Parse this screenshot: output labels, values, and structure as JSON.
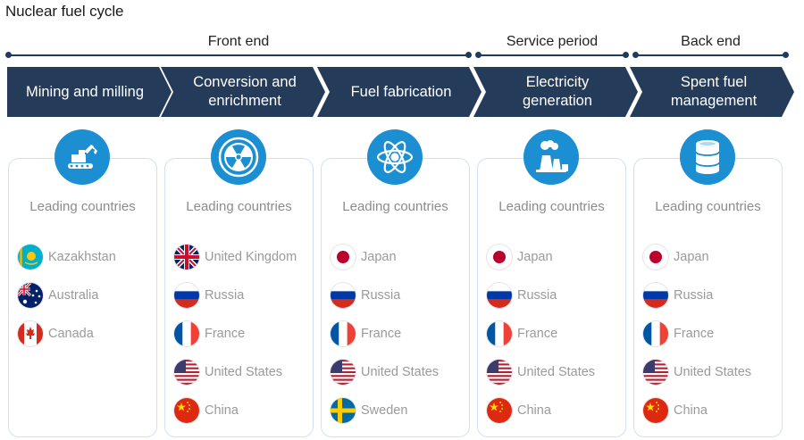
{
  "title": "Nuclear fuel cycle",
  "phases": [
    {
      "label": "Front end"
    },
    {
      "label": "Service period"
    },
    {
      "label": "Back end"
    }
  ],
  "steps": [
    {
      "label": "Mining and milling",
      "icon": "excavator-icon"
    },
    {
      "label": "Conversion and enrichment",
      "icon": "radiation-icon"
    },
    {
      "label": "Fuel fabrication",
      "icon": "atom-icon"
    },
    {
      "label": "Electricity generation",
      "icon": "power-plant-icon"
    },
    {
      "label": "Spent fuel management",
      "icon": "waste-barrel-icon"
    }
  ],
  "cards": [
    {
      "heading": "Leading countries",
      "countries": [
        "Kazakhstan",
        "Australia",
        "Canada"
      ]
    },
    {
      "heading": "Leading countries",
      "countries": [
        "United Kingdom",
        "Russia",
        "France",
        "United States",
        "China"
      ]
    },
    {
      "heading": "Leading countries",
      "countries": [
        "Japan",
        "Russia",
        "France",
        "United States",
        "Sweden"
      ]
    },
    {
      "heading": "Leading countries",
      "countries": [
        "Japan",
        "Russia",
        "France",
        "United States",
        "China"
      ]
    },
    {
      "heading": "Leading countries",
      "countries": [
        "Japan",
        "Russia",
        "France",
        "United States",
        "China"
      ]
    }
  ],
  "colors": {
    "step_fill": "#253b5a",
    "icon_fill": "#1c8fd2",
    "card_border": "#cfe2f3",
    "country_text": "#9a9a9a"
  }
}
